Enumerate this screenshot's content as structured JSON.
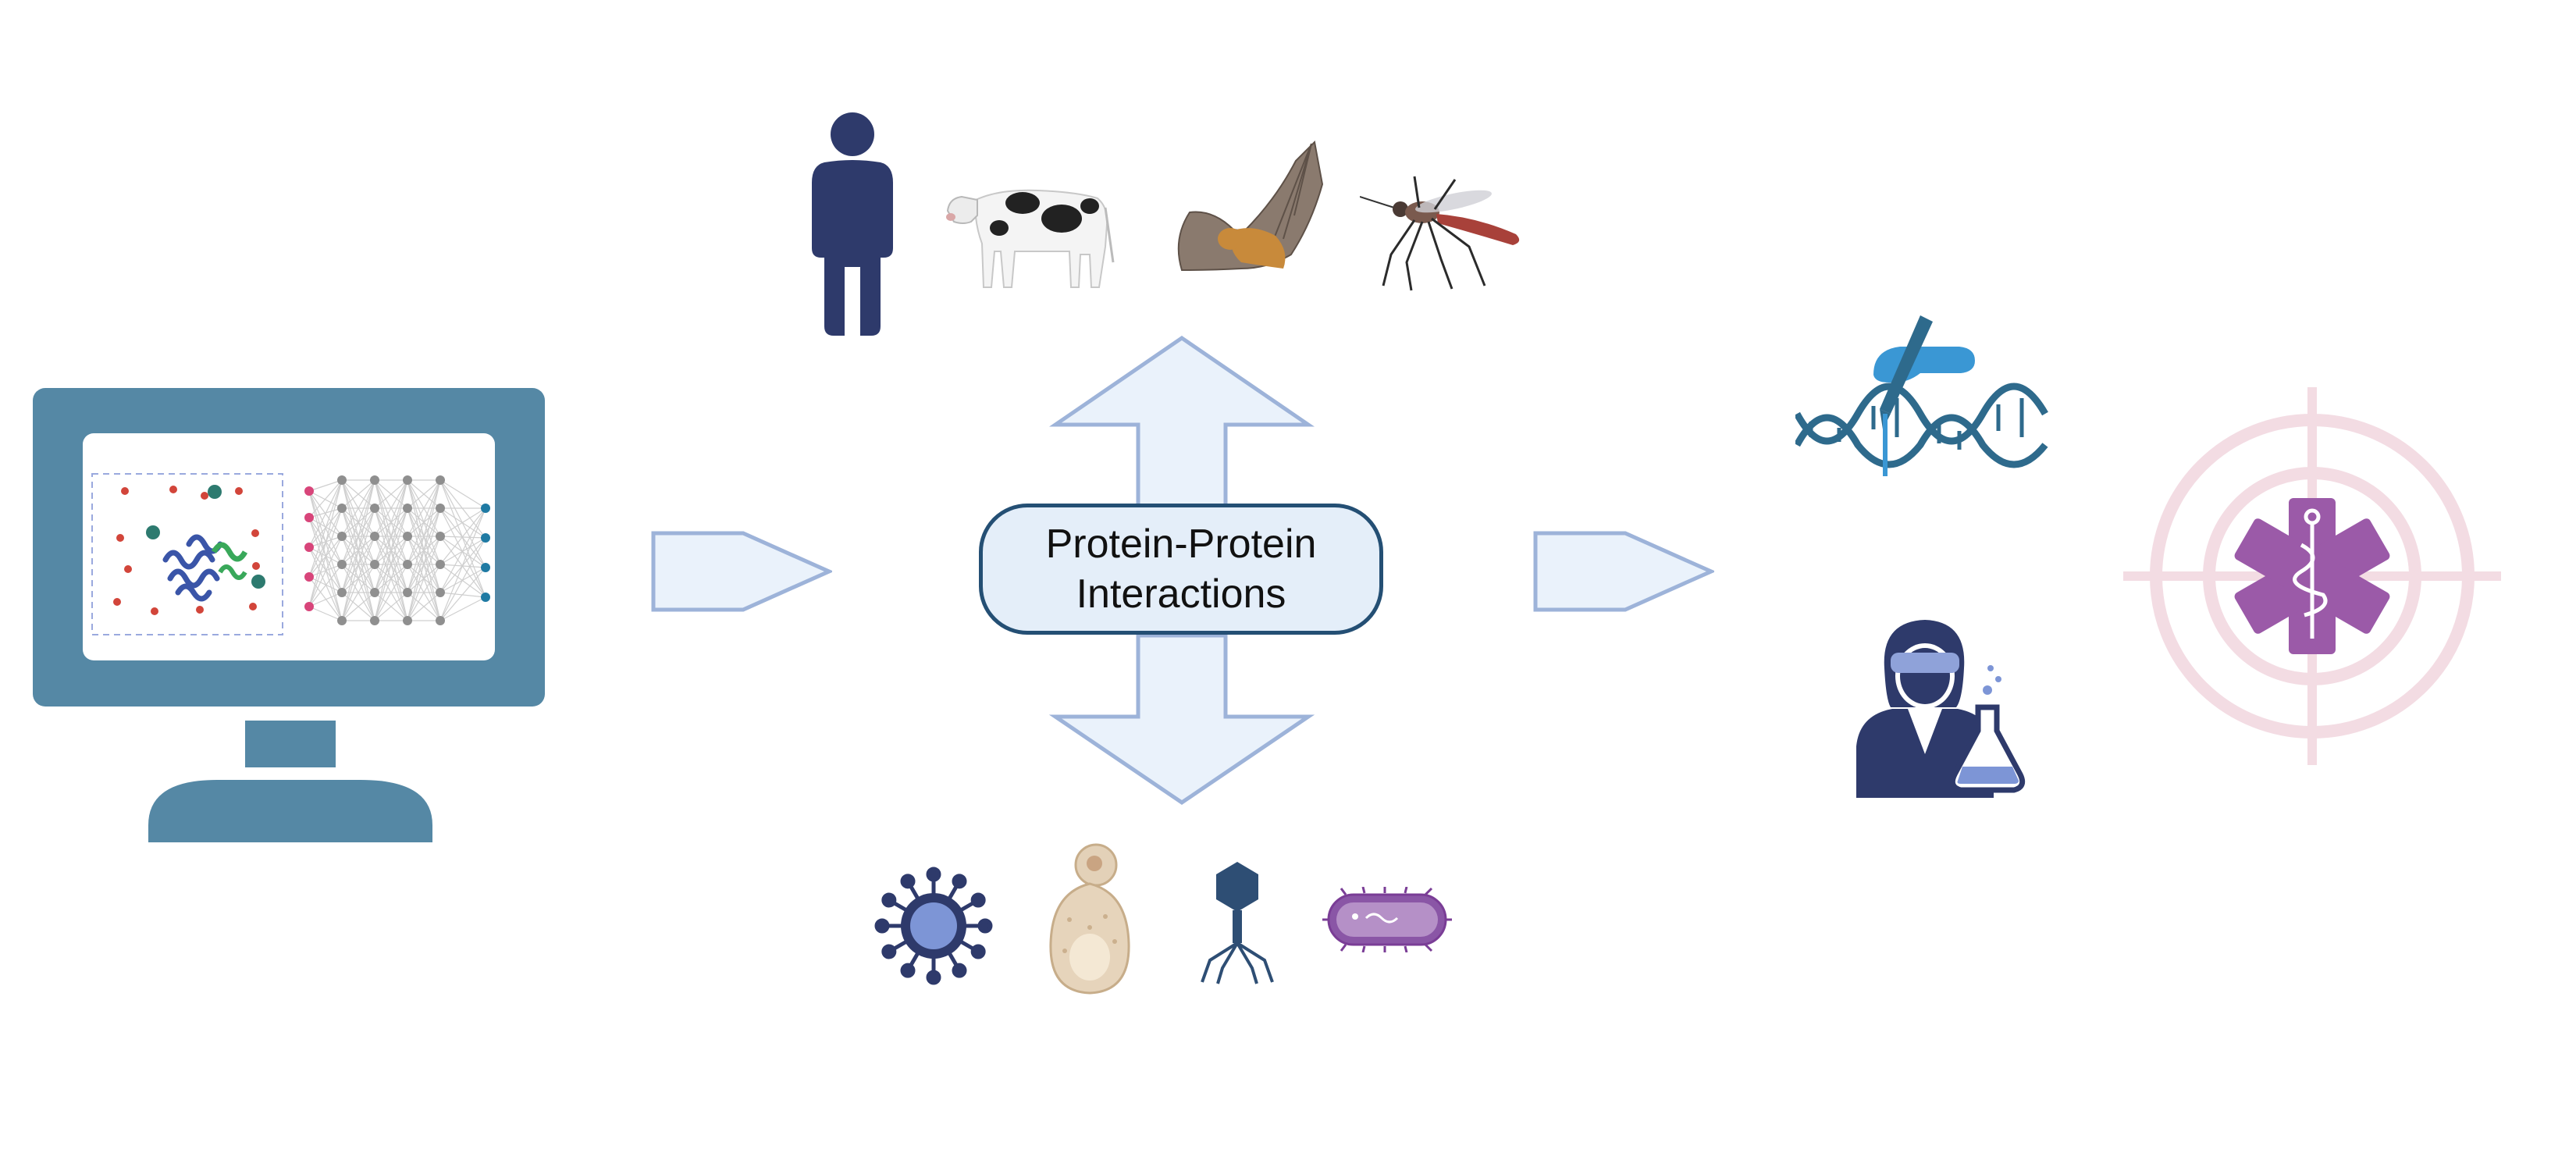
{
  "center": {
    "line1": "Protein-Protein",
    "line2": "Interactions"
  },
  "colors": {
    "monitor": "#5588a5",
    "arrow_fill": "#eaf2fb",
    "arrow_stroke": "#9db3d9",
    "label_border": "#244f74",
    "label_fill": "#e4eef9",
    "navy": "#2e3a6b",
    "purple": "#9b5aa8",
    "target": "#f3dce3",
    "dna": "#2e6a8c",
    "glove": "#3a97d4"
  },
  "icons": {
    "computer": "monitor-neural-network-icon",
    "hosts": [
      "human-icon",
      "cow-icon",
      "bat-icon",
      "mosquito-icon"
    ],
    "pathogens": [
      "virus-icon",
      "yeast-icon",
      "bacteriophage-icon",
      "bacterium-icon"
    ],
    "outcomes": [
      "dna-editing-icon",
      "scientist-icon",
      "drug-target-icon"
    ]
  }
}
